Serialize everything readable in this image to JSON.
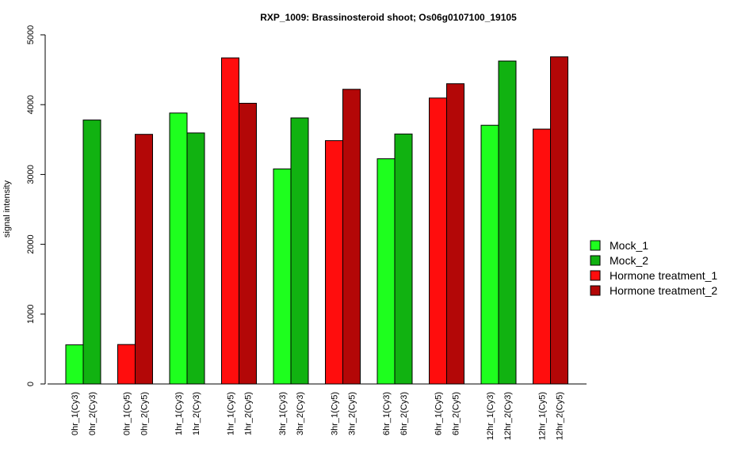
{
  "chart_data": {
    "type": "bar",
    "title": "RXP_1009: Brassinosteroid shoot; Os06g0107100_19105",
    "xlabel": "",
    "ylabel": "signal intensity",
    "ylim": [
      0,
      5000
    ],
    "yticks": [
      0,
      1000,
      2000,
      3000,
      4000,
      5000
    ],
    "grid": false,
    "legend_position": "right",
    "legend": [
      {
        "name": "Mock_1",
        "color": "#1EFF1E"
      },
      {
        "name": "Mock_2",
        "color": "#11B211"
      },
      {
        "name": "Hormone treatment_1",
        "color": "#FF0D0D"
      },
      {
        "name": "Hormone treatment_2",
        "color": "#B30707"
      }
    ],
    "groups": [
      {
        "bars": [
          {
            "label": "0hr_1(Cy3)",
            "value": 560,
            "series": "Mock_1"
          },
          {
            "label": "0hr_2(Cy3)",
            "value": 3780,
            "series": "Mock_2"
          }
        ]
      },
      {
        "bars": [
          {
            "label": "0hr_1(Cy5)",
            "value": 565,
            "series": "Hormone treatment_1"
          },
          {
            "label": "0hr_2(Cy5)",
            "value": 3575,
            "series": "Hormone treatment_2"
          }
        ]
      },
      {
        "bars": [
          {
            "label": "1hr_1(Cy3)",
            "value": 3880,
            "series": "Mock_1"
          },
          {
            "label": "1hr_2(Cy3)",
            "value": 3595,
            "series": "Mock_2"
          }
        ]
      },
      {
        "bars": [
          {
            "label": "1hr_1(Cy5)",
            "value": 4670,
            "series": "Hormone treatment_1"
          },
          {
            "label": "1hr_2(Cy5)",
            "value": 4020,
            "series": "Hormone treatment_2"
          }
        ]
      },
      {
        "bars": [
          {
            "label": "3hr_1(Cy3)",
            "value": 3080,
            "series": "Mock_1"
          },
          {
            "label": "3hr_2(Cy3)",
            "value": 3810,
            "series": "Mock_2"
          }
        ]
      },
      {
        "bars": [
          {
            "label": "3hr_1(Cy5)",
            "value": 3485,
            "series": "Hormone treatment_1"
          },
          {
            "label": "3hr_2(Cy5)",
            "value": 4220,
            "series": "Hormone treatment_2"
          }
        ]
      },
      {
        "bars": [
          {
            "label": "6hr_1(Cy3)",
            "value": 3225,
            "series": "Mock_1"
          },
          {
            "label": "6hr_2(Cy3)",
            "value": 3580,
            "series": "Mock_2"
          }
        ]
      },
      {
        "bars": [
          {
            "label": "6hr_1(Cy5)",
            "value": 4095,
            "series": "Hormone treatment_1"
          },
          {
            "label": "6hr_2(Cy5)",
            "value": 4300,
            "series": "Hormone treatment_2"
          }
        ]
      },
      {
        "bars": [
          {
            "label": "12hr_1(Cy3)",
            "value": 3705,
            "series": "Mock_1"
          },
          {
            "label": "12hr_2(Cy3)",
            "value": 4625,
            "series": "Mock_2"
          }
        ]
      },
      {
        "bars": [
          {
            "label": "12hr_1(Cy5)",
            "value": 3650,
            "series": "Hormone treatment_1"
          },
          {
            "label": "12hr_2(Cy5)",
            "value": 4685,
            "series": "Hormone treatment_2"
          }
        ]
      }
    ]
  }
}
